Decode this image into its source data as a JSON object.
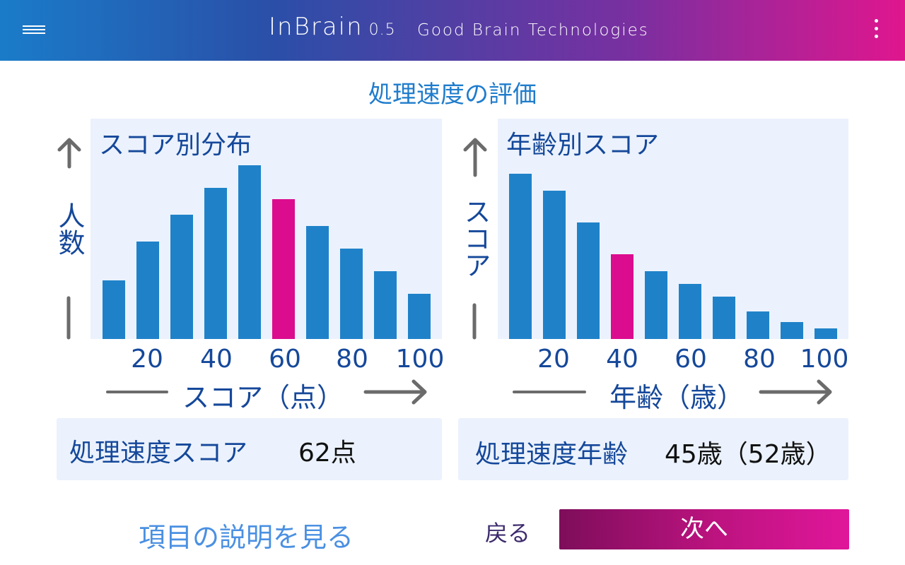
{
  "header": {
    "app_name": "InBrain",
    "version": "0.5",
    "company": "Good Brain Technologies",
    "menu_icon": "hamburger-menu-icon",
    "more_icon": "more-vertical-icon"
  },
  "page_title": "処理速度の評価",
  "left_chart": {
    "title": "スコア別分布",
    "ylabel": "人数",
    "xlabel": "スコア（点）",
    "ticks": [
      "20",
      "40",
      "60",
      "80",
      "100"
    ]
  },
  "right_chart": {
    "title": "年齢別スコア",
    "ylabel": "スコア",
    "xlabel": "年齢（歳）",
    "ticks": [
      "20",
      "40",
      "60",
      "80",
      "100"
    ]
  },
  "chart_data": [
    {
      "type": "bar",
      "title": "スコア別分布",
      "xlabel": "スコア（点）",
      "ylabel": "人数",
      "x": [
        10,
        20,
        30,
        40,
        50,
        60,
        70,
        80,
        90,
        100
      ],
      "values": [
        26,
        43,
        55,
        67,
        77,
        62,
        50,
        40,
        30,
        20
      ],
      "highlight_index": 5,
      "xticks": [
        "20",
        "40",
        "60",
        "80",
        "100"
      ],
      "ylim": [
        0,
        80
      ],
      "grid": false,
      "legend": "none"
    },
    {
      "type": "bar",
      "title": "年齢別スコア",
      "xlabel": "年齢（歳）",
      "ylabel": "スコア",
      "x": [
        10,
        20,
        30,
        40,
        50,
        60,
        70,
        80,
        90,
        100
      ],
      "values": [
        78,
        70,
        55,
        40,
        32,
        26,
        20,
        13,
        8,
        5
      ],
      "highlight_index": 3,
      "xticks": [
        "20",
        "40",
        "60",
        "80",
        "100"
      ],
      "ylim": [
        0,
        80
      ],
      "grid": false,
      "legend": "none"
    }
  ],
  "results": {
    "score_label": "処理速度スコア",
    "score_value": "62点",
    "age_label": "処理速度年齢",
    "age_value": "45歳（52歳）"
  },
  "actions": {
    "help": "項目の説明を見る",
    "back": "戻る",
    "next": "次へ"
  },
  "colors": {
    "bar": "#1f82c9",
    "highlight": "#dc0c8e",
    "text_blue": "#15489a",
    "title_blue": "#1f7ccc",
    "panel_bg": "#ebf2fd",
    "arrow": "#6b6b6b"
  }
}
